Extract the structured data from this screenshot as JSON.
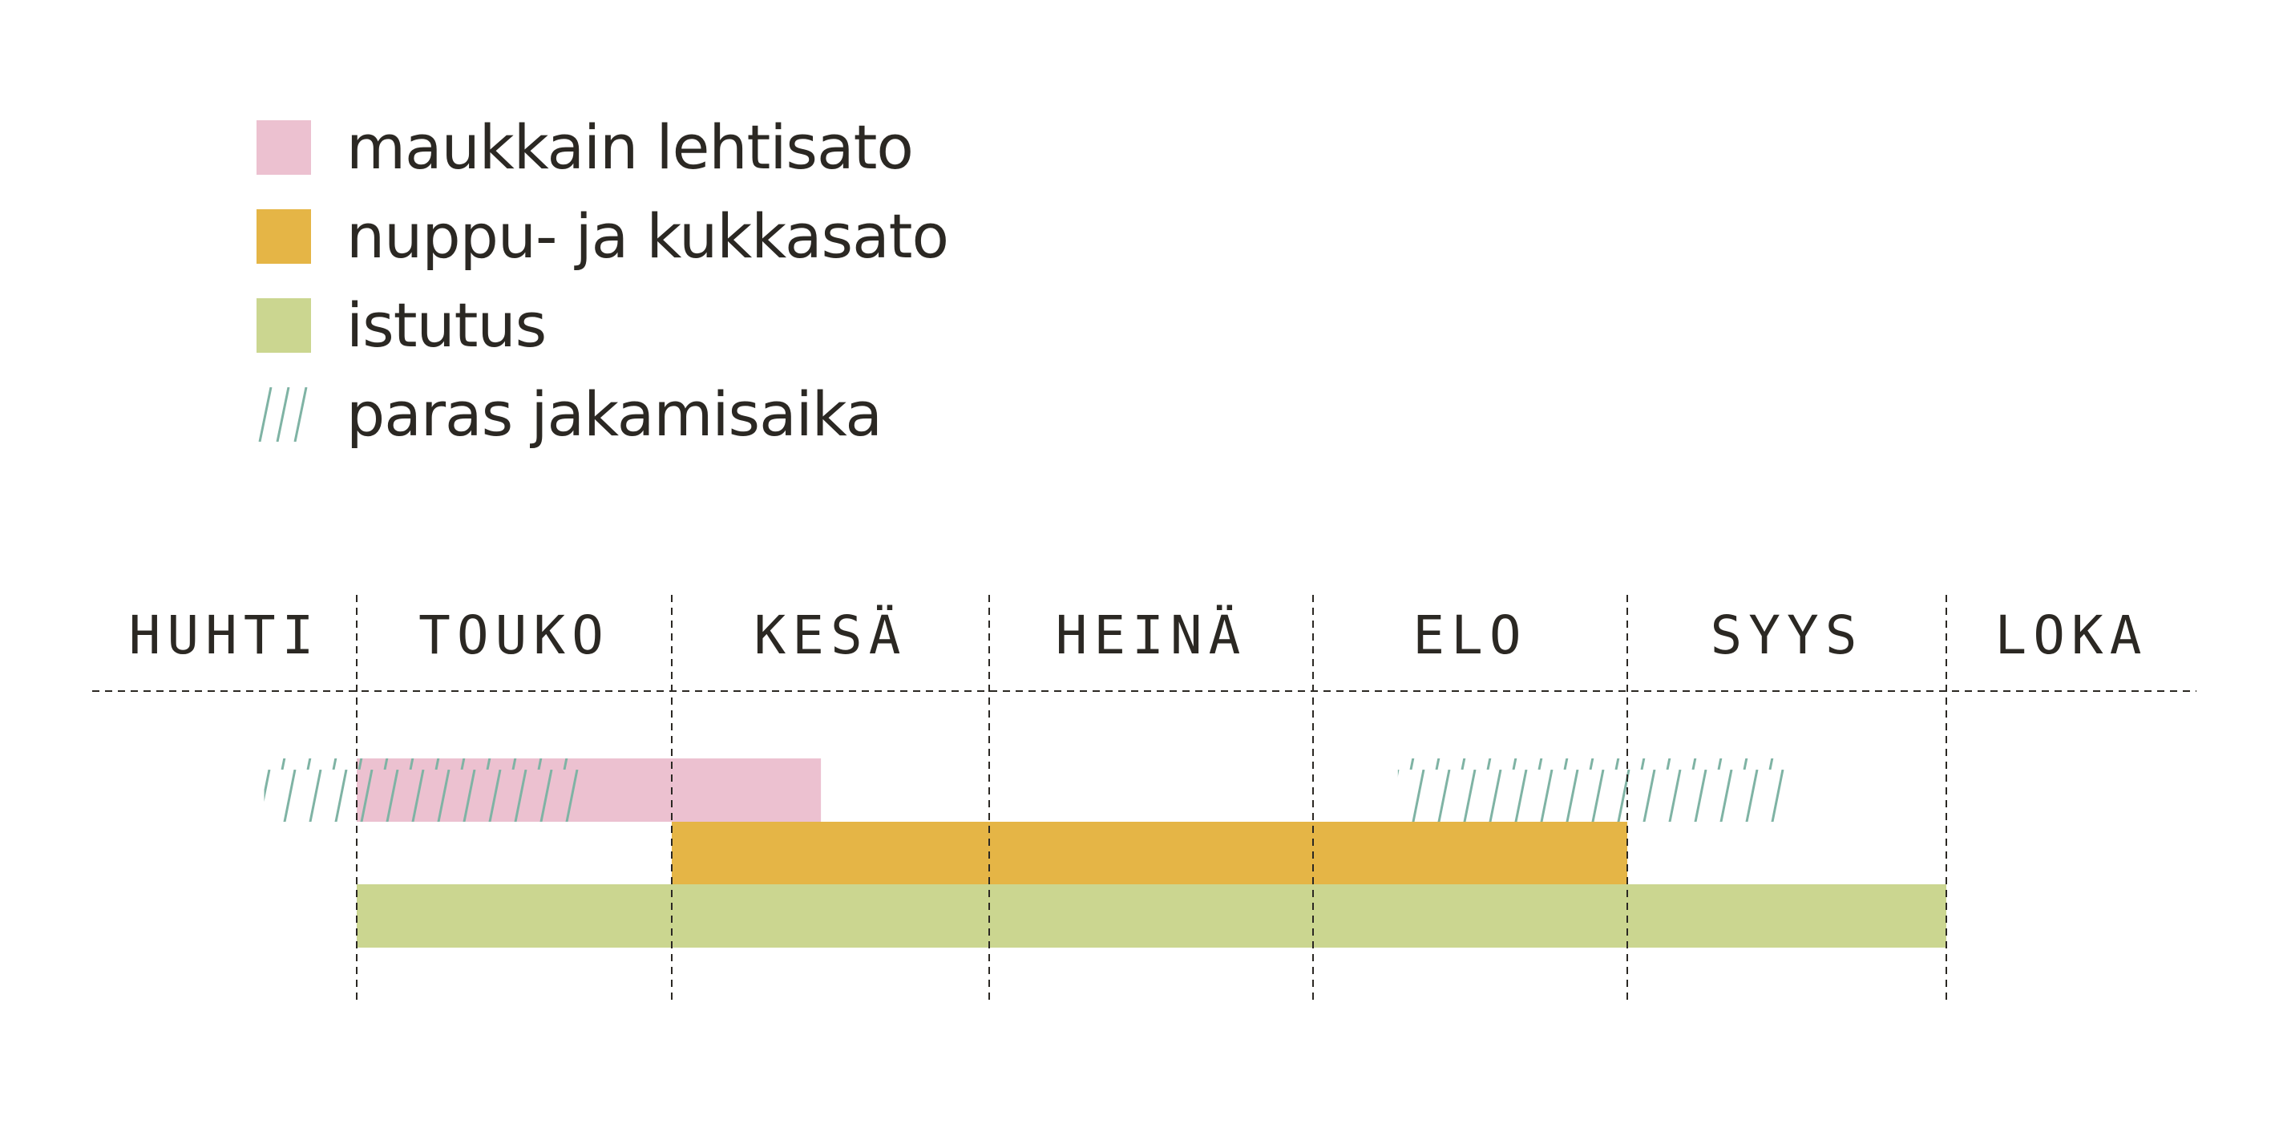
{
  "chart_data": {
    "type": "gantt",
    "legend": [
      {
        "key": "leaf",
        "label": "maukkain lehtisato",
        "color": "#ecc1d0",
        "pattern": "solid",
        "icon": "pink-square-swatch"
      },
      {
        "key": "flower",
        "label": "nuppu- ja kukkasato",
        "color": "#e5b546",
        "pattern": "solid",
        "icon": "orange-square-swatch"
      },
      {
        "key": "plant",
        "label": "istutus",
        "color": "#cbd690",
        "pattern": "solid",
        "icon": "green-square-swatch"
      },
      {
        "key": "divide",
        "label": "paras jakamisaika",
        "color": "#7fb3a4",
        "pattern": "hatched",
        "icon": "diagonal-hatch-swatch"
      }
    ],
    "months": [
      "HUHTI",
      "TOUKO",
      "KESÄ",
      "HEINÄ",
      "ELO",
      "SYYS",
      "LOKA"
    ],
    "bars": [
      {
        "series": "divide",
        "start": 0.65,
        "end": 1.72
      },
      {
        "series": "leaf",
        "start": 1.0,
        "end": 2.47
      },
      {
        "series": "divide",
        "start": 4.27,
        "end": 5.5
      },
      {
        "series": "flower",
        "start": 2.0,
        "end": 5.0
      },
      {
        "series": "plant",
        "start": 1.0,
        "end": 6.0
      }
    ]
  }
}
